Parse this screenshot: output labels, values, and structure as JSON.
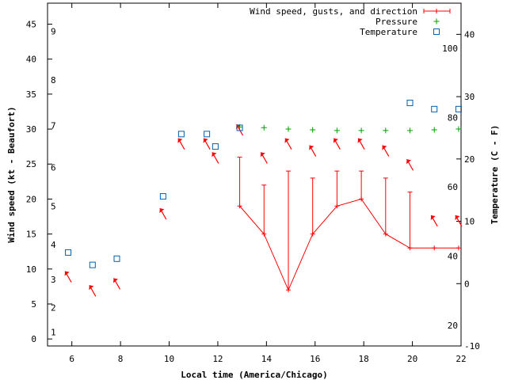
{
  "chart_data": {
    "type": "line",
    "xlabel": "Local time (America/Chicago)",
    "ylabel_left": "Wind speed (kt - Beaufort)",
    "ylabel_right": "Temperature (C - F)",
    "xlim": [
      5,
      22
    ],
    "ylim_left": [
      -1,
      48
    ],
    "ylim_right": [
      -10,
      45
    ],
    "x_ticks": [
      "6",
      "8",
      "10",
      "12",
      "14",
      "16",
      "18",
      "20",
      "22"
    ],
    "y_ticks_left": [
      "0",
      "5",
      "10",
      "15",
      "20",
      "25",
      "30",
      "35",
      "40",
      "45"
    ],
    "beaufort_labels": [
      "1",
      "2",
      "3",
      "4",
      "5",
      "6",
      "7",
      "8",
      "9"
    ],
    "temp_c_ticks": [
      "-10",
      "0",
      "10",
      "20",
      "30",
      "40"
    ],
    "temp_f_labels": [
      "20",
      "40",
      "60",
      "80",
      "100"
    ],
    "legend": {
      "placement": "top-right",
      "entries": [
        "Wind speed, gusts, and direction",
        "Pressure",
        "Temperature"
      ]
    },
    "colors": {
      "wind": "#ff0000",
      "direction_arrow": "#ff0000",
      "pressure": "#00a000",
      "temperature": "#0060ad"
    },
    "series": [
      {
        "name": "Wind speed, gusts, and direction",
        "x": [
          12.9,
          13.9,
          14.9,
          15.9,
          16.9,
          17.9,
          18.9,
          19.9,
          20.9,
          21.9
        ],
        "values": [
          19,
          15,
          7,
          15,
          19,
          20,
          15,
          13,
          13,
          13
        ],
        "gusts": [
          26,
          22,
          24,
          23,
          24,
          24,
          23,
          21,
          null,
          null
        ]
      },
      {
        "name": "Pressure",
        "x": [
          12.9,
          13.9,
          14.9,
          15.9,
          16.9,
          17.9,
          18.9,
          19.9,
          20.9,
          21.9
        ],
        "values": [
          30.3,
          30.2,
          30.0,
          29.9,
          29.8,
          29.8,
          29.8,
          29.8,
          29.9,
          30.0
        ]
      },
      {
        "name": "Temperature",
        "x": [
          5.85,
          6.85,
          7.85,
          9.75,
          10.5,
          11.55,
          11.9,
          12.9,
          19.9,
          20.9,
          21.9
        ],
        "values": [
          5,
          3,
          4,
          14,
          24,
          24,
          22,
          25,
          29,
          28,
          28
        ]
      }
    ],
    "direction_arrows": {
      "x": [
        5.85,
        6.85,
        7.85,
        9.75,
        10.5,
        11.55,
        11.9,
        12.9,
        13.9,
        14.9,
        15.9,
        16.9,
        17.9,
        18.9,
        19.9,
        20.9,
        21.9
      ],
      "y": [
        9,
        7,
        8,
        18,
        28,
        28,
        26,
        30,
        26,
        28,
        27,
        28,
        28,
        27,
        25,
        17,
        17
      ]
    }
  }
}
